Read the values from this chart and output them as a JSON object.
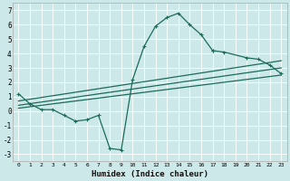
{
  "xlabel": "Humidex (Indice chaleur)",
  "bg_color": "#cde8e8",
  "grid_color": "#b8d8d8",
  "line_color": "#1a6b5a",
  "xlim": [
    -0.5,
    23.5
  ],
  "ylim": [
    -3.5,
    7.5
  ],
  "xticks": [
    0,
    1,
    2,
    3,
    4,
    5,
    6,
    7,
    8,
    9,
    10,
    11,
    12,
    13,
    14,
    15,
    16,
    17,
    18,
    19,
    20,
    21,
    22,
    23
  ],
  "yticks": [
    -3,
    -2,
    -1,
    0,
    1,
    2,
    3,
    4,
    5,
    6,
    7
  ],
  "curve1_x": [
    0,
    1,
    2,
    3,
    4,
    5,
    6,
    7,
    8,
    9,
    10,
    11,
    12,
    13,
    14,
    15,
    16,
    17
  ],
  "curve1_y": [
    1.2,
    0.5,
    0.1,
    0.1,
    -0.3,
    -0.7,
    -0.6,
    -0.3,
    -2.6,
    -2.7,
    2.2,
    4.5,
    5.9,
    6.5,
    6.8,
    6.0,
    5.3,
    4.2
  ],
  "curve2_x": [
    17,
    18,
    20,
    21,
    22,
    23
  ],
  "curve2_y": [
    4.2,
    4.1,
    3.7,
    3.6,
    3.2,
    2.6
  ],
  "line1": {
    "x": [
      0,
      23
    ],
    "y": [
      0.2,
      2.5
    ]
  },
  "line2": {
    "x": [
      0,
      23
    ],
    "y": [
      0.4,
      3.0
    ]
  },
  "line3": {
    "x": [
      0,
      23
    ],
    "y": [
      0.7,
      3.5
    ]
  }
}
